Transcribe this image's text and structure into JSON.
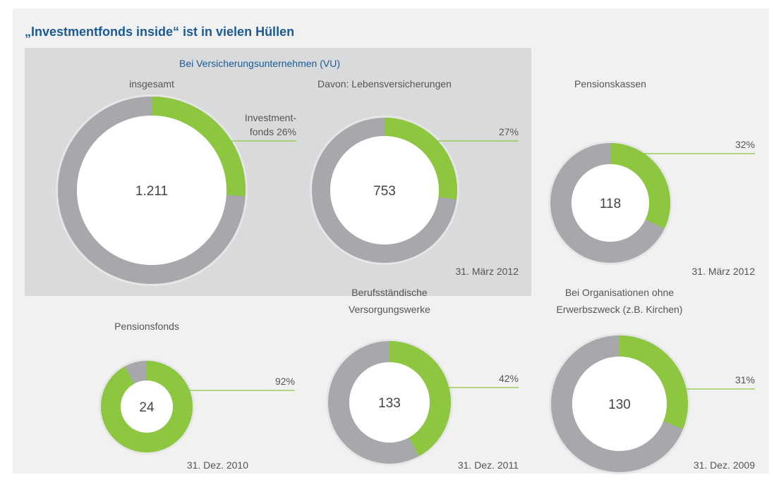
{
  "title": "„Investmentfonds inside“ ist in vielen Hüllen",
  "group_label": "Bei Versicherungsunternehmen (VU)",
  "colors": {
    "share": "#8dc63f",
    "rest": "#a6a8ab",
    "line": "#8dc63f"
  },
  "chart_data": [
    {
      "type": "donut",
      "title": [
        "insgesamt"
      ],
      "center_label": "1.211",
      "value": 26,
      "value_label": [
        "Investment-",
        "fonds 26%"
      ]
    },
    {
      "type": "donut",
      "title": [
        "Davon: Lebensversicherungen"
      ],
      "center_label": "753",
      "value": 27,
      "value_label": [
        "27%"
      ],
      "date": "31. März 2012"
    },
    {
      "type": "donut",
      "title": [
        "Pensionskassen"
      ],
      "center_label": "118",
      "value": 32,
      "value_label": [
        "32%"
      ],
      "date": "31. März 2012"
    },
    {
      "type": "donut",
      "title": [
        "Pensionsfonds"
      ],
      "center_label": "24",
      "value": 92,
      "value_label": [
        "92%"
      ],
      "date": "31. Dez. 2010"
    },
    {
      "type": "donut",
      "title": [
        "Berufsständische",
        "Versorgungswerke"
      ],
      "center_label": "133",
      "value": 42,
      "value_label": [
        "42%"
      ],
      "date": "31. Dez. 2011"
    },
    {
      "type": "donut",
      "title": [
        "Bei Organisationen ohne",
        "Erwerbszweck (z.B. Kirchen)"
      ],
      "center_label": "130",
      "value": 31,
      "value_label": [
        "31%"
      ],
      "date": "31. Dez. 2009"
    }
  ]
}
